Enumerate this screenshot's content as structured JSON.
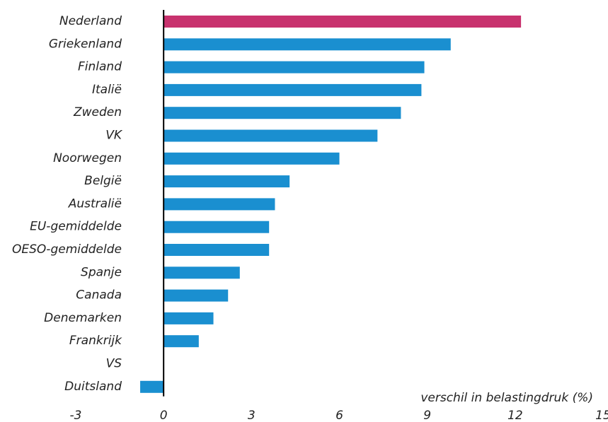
{
  "chart_data": {
    "type": "barh",
    "categories": [
      "Nederland",
      "Griekenland",
      "Finland",
      "Italië",
      "Zweden",
      "VK",
      "Noorwegen",
      "België",
      "Australië",
      "EU-gemiddelde",
      "OESO-gemiddelde",
      "Spanje",
      "Canada",
      "Denemarken",
      "Frankrijk",
      "VS",
      "Duitsland"
    ],
    "values": [
      12.2,
      9.8,
      8.9,
      8.8,
      8.1,
      7.3,
      6.0,
      4.3,
      3.8,
      3.6,
      3.6,
      2.6,
      2.2,
      1.7,
      1.2,
      0,
      -0.8
    ],
    "colors": [
      "#c8326e",
      "#1a8fd0",
      "#1a8fd0",
      "#1a8fd0",
      "#1a8fd0",
      "#1a8fd0",
      "#1a8fd0",
      "#1a8fd0",
      "#1a8fd0",
      "#1a8fd0",
      "#1a8fd0",
      "#1a8fd0",
      "#1a8fd0",
      "#1a8fd0",
      "#1a8fd0",
      "#1a8fd0",
      "#1a8fd0"
    ],
    "xlabel": "verschil in belastingdruk (%)",
    "xlim": [
      -3,
      15
    ],
    "xticks": [
      -3,
      0,
      3,
      6,
      9,
      12,
      15
    ],
    "grid": false
  }
}
